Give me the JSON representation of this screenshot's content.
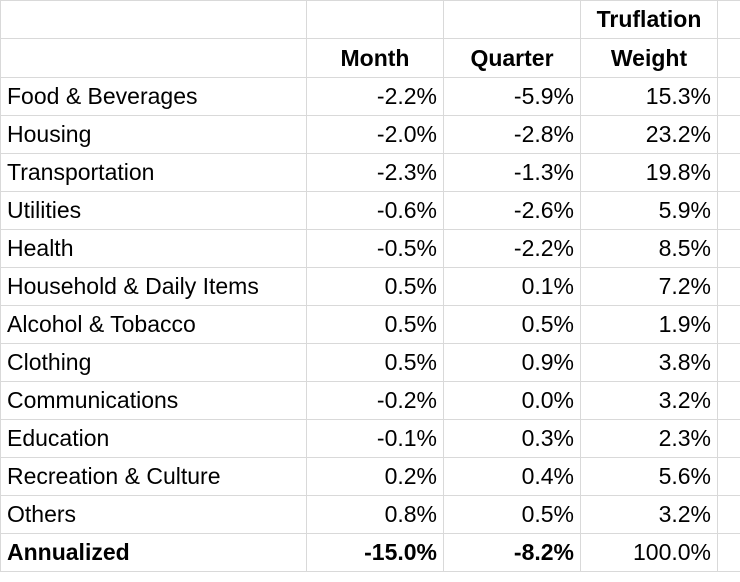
{
  "header": {
    "top_weight": "Truflation",
    "month": "Month",
    "quarter": "Quarter",
    "weight": "Weight"
  },
  "rows": [
    {
      "category": "Food & Beverages",
      "month": "-2.2%",
      "quarter": "-5.9%",
      "weight": "15.3%"
    },
    {
      "category": "Housing",
      "month": "-2.0%",
      "quarter": "-2.8%",
      "weight": "23.2%"
    },
    {
      "category": "Transportation",
      "month": "-2.3%",
      "quarter": "-1.3%",
      "weight": "19.8%"
    },
    {
      "category": "Utilities",
      "month": "-0.6%",
      "quarter": "-2.6%",
      "weight": "5.9%"
    },
    {
      "category": "Health",
      "month": "-0.5%",
      "quarter": "-2.2%",
      "weight": "8.5%"
    },
    {
      "category": "Household & Daily Items",
      "month": "0.5%",
      "quarter": "0.1%",
      "weight": "7.2%"
    },
    {
      "category": "Alcohol & Tobacco",
      "month": "0.5%",
      "quarter": "0.5%",
      "weight": "1.9%"
    },
    {
      "category": "Clothing",
      "month": "0.5%",
      "quarter": "0.9%",
      "weight": "3.8%"
    },
    {
      "category": "Communications",
      "month": "-0.2%",
      "quarter": "0.0%",
      "weight": "3.2%"
    },
    {
      "category": "Education",
      "month": "-0.1%",
      "quarter": "0.3%",
      "weight": "2.3%"
    },
    {
      "category": "Recreation & Culture",
      "month": "0.2%",
      "quarter": "0.4%",
      "weight": "5.6%"
    },
    {
      "category": "Others",
      "month": "0.8%",
      "quarter": "0.5%",
      "weight": "3.2%"
    }
  ],
  "total": {
    "category": "Annualized",
    "month": "-15.0%",
    "quarter": "-8.2%",
    "weight": "100.0%"
  }
}
